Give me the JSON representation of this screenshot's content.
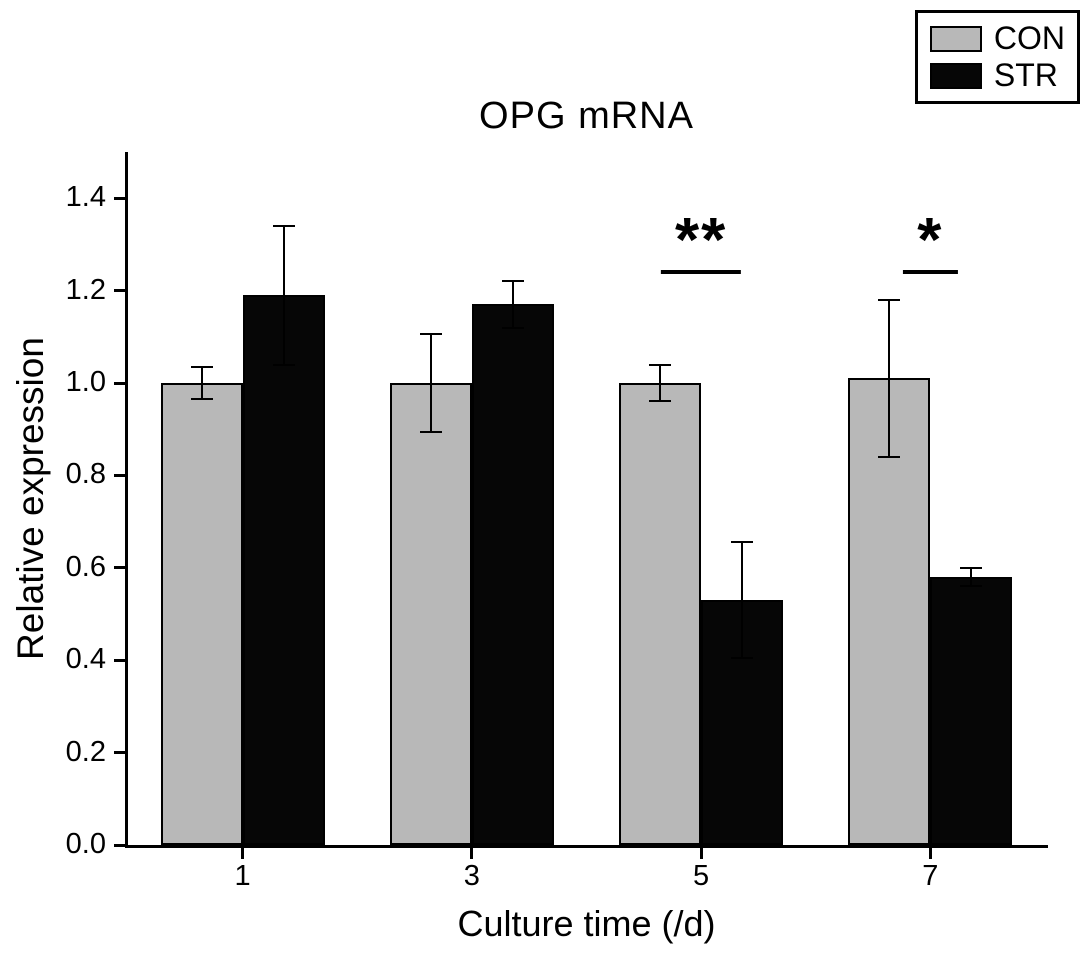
{
  "chart_data": {
    "type": "bar",
    "title": "OPG mRNA",
    "xlabel": "Culture time (/d)",
    "ylabel": "Relative expression",
    "categories": [
      "1",
      "3",
      "5",
      "7"
    ],
    "series": [
      {
        "name": "CON",
        "color": "#b8b8b8",
        "values": [
          1.0,
          1.0,
          1.0,
          1.01
        ],
        "errors": [
          0.035,
          0.105,
          0.04,
          0.17
        ]
      },
      {
        "name": "STR",
        "color": "#060606",
        "values": [
          1.19,
          1.17,
          0.53,
          0.58
        ],
        "errors": [
          0.15,
          0.05,
          0.125,
          0.02
        ]
      }
    ],
    "ylim": [
      0.0,
      1.5
    ],
    "yticks": [
      "0.0",
      "0.2",
      "0.4",
      "0.6",
      "0.8",
      "1.0",
      "1.2",
      "1.4"
    ],
    "grid": false,
    "legend": {
      "position": "top-right",
      "entries": [
        "CON",
        "STR"
      ]
    },
    "annotations": [
      {
        "category": "5",
        "label": "**"
      },
      {
        "category": "7",
        "label": "*"
      }
    ]
  }
}
